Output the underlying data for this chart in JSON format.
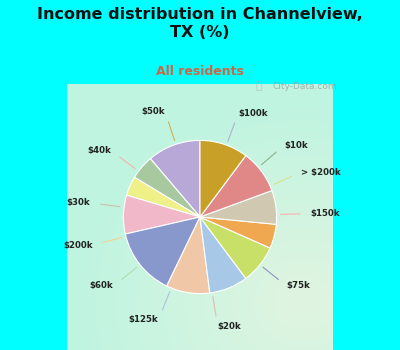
{
  "title": "Income distribution in Channelview,\nTX (%)",
  "subtitle": "All residents",
  "bg_cyan": "#00FFFF",
  "labels": [
    "$100k",
    "$10k",
    "> $200k",
    "$150k",
    "$75k",
    "$20k",
    "$125k",
    "$60k",
    "$200k",
    "$30k",
    "$40k",
    "$50k"
  ],
  "sizes": [
    11,
    5,
    4,
    8,
    14,
    9,
    8,
    8,
    5,
    7,
    9,
    10
  ],
  "colors": [
    "#b8a8d8",
    "#a8c8a0",
    "#f0f088",
    "#f0b8c8",
    "#8898cc",
    "#f0c8a8",
    "#a8c8e8",
    "#c8e068",
    "#f0a850",
    "#d0c8b0",
    "#e08888",
    "#c8a028"
  ],
  "startangle": 90,
  "title_color": "#111111",
  "subtitle_color": "#cc6644",
  "watermark": "City-Data.com",
  "label_color": "#222222",
  "line_color_map": {
    "$100k": "#aaaacc",
    "$10k": "#88aa88",
    "> $200k": "#dddd88",
    "$150k": "#ffaaaa",
    "$75k": "#8888bb",
    "$20k": "#ddbbaa",
    "$125k": "#aabbdd",
    "$60k": "#aaddaa",
    "$200k": "#ffcc88",
    "$30k": "#ccbbaa",
    "$40k": "#ffaaaa",
    "$50k": "#ccaa44"
  }
}
